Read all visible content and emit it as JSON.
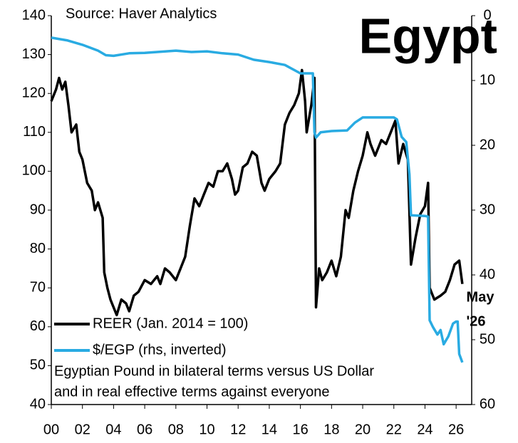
{
  "chart_data": {
    "type": "line",
    "title": "Egypt",
    "annotations": [
      "Source: Haver Analytics",
      "Egyptian Pound in bilateral terms versus US Dollar",
      "and in real effective terms against everyone",
      "May",
      "'26"
    ],
    "xlim": [
      2000,
      2027
    ],
    "xticks": [
      {
        "value": 2000,
        "label": "00"
      },
      {
        "value": 2002,
        "label": "02"
      },
      {
        "value": 2004,
        "label": "04"
      },
      {
        "value": 2006,
        "label": "06"
      },
      {
        "value": 2008,
        "label": "08"
      },
      {
        "value": 2010,
        "label": "10"
      },
      {
        "value": 2012,
        "label": "12"
      },
      {
        "value": 2014,
        "label": "14"
      },
      {
        "value": 2016,
        "label": "16"
      },
      {
        "value": 2018,
        "label": "18"
      },
      {
        "value": 2020,
        "label": "20"
      },
      {
        "value": 2022,
        "label": "22"
      },
      {
        "value": 2024,
        "label": "24"
      },
      {
        "value": 2026,
        "label": "26"
      }
    ],
    "ylim": [
      40,
      140
    ],
    "yticks": [
      40,
      50,
      60,
      70,
      80,
      90,
      100,
      110,
      120,
      130,
      140
    ],
    "y2lim": [
      60,
      0
    ],
    "y2ticks": [
      0,
      10,
      20,
      30,
      40,
      50,
      60
    ],
    "y2_inverted": true,
    "legend": "lower left",
    "series": [
      {
        "name": "REER (Jan. 2014 = 100)",
        "color": "#000000",
        "x": [
          2000.0,
          2000.3,
          2000.5,
          2000.7,
          2000.9,
          2001.1,
          2001.3,
          2001.6,
          2001.8,
          2002.0,
          2002.3,
          2002.6,
          2002.8,
          2003.0,
          2003.3,
          2003.4,
          2003.6,
          2003.8,
          2004.0,
          2004.2,
          2004.5,
          2004.8,
          2005.0,
          2005.3,
          2005.6,
          2006.0,
          2006.4,
          2006.8,
          2007.0,
          2007.3,
          2007.6,
          2008.0,
          2008.3,
          2008.6,
          2008.9,
          2009.2,
          2009.5,
          2009.8,
          2010.1,
          2010.4,
          2010.7,
          2011.0,
          2011.3,
          2011.6,
          2011.8,
          2012.0,
          2012.3,
          2012.6,
          2012.9,
          2013.2,
          2013.5,
          2013.7,
          2014.0,
          2014.4,
          2014.7,
          2015.0,
          2015.3,
          2015.6,
          2015.9,
          2016.1,
          2016.3,
          2016.4,
          2016.7,
          2016.9,
          2017.0,
          2017.2,
          2017.4,
          2017.7,
          2018.0,
          2018.3,
          2018.6,
          2018.9,
          2019.1,
          2019.4,
          2019.7,
          2020.0,
          2020.3,
          2020.5,
          2020.8,
          2021.2,
          2021.5,
          2021.8,
          2022.1,
          2022.3,
          2022.6,
          2022.9,
          2023.1,
          2023.4,
          2023.7,
          2024.0,
          2024.2,
          2024.3,
          2024.6,
          2025.0,
          2025.3,
          2025.6,
          2025.9,
          2026.2,
          2026.4
        ],
        "values": [
          118,
          121,
          124,
          121,
          123,
          117,
          110,
          112,
          105,
          103,
          97,
          95,
          90,
          92,
          88,
          74,
          70,
          67,
          65,
          63,
          67,
          66,
          64,
          68,
          69,
          72,
          71,
          73,
          71,
          75,
          74,
          72,
          75,
          78,
          86,
          93,
          91,
          94,
          97,
          96,
          100,
          100,
          102,
          98,
          94,
          95,
          101,
          102,
          105,
          104,
          97,
          95,
          98,
          100,
          102,
          112,
          115,
          117,
          120,
          126,
          118,
          110,
          117,
          124,
          65,
          75,
          72,
          74,
          77,
          73,
          78,
          90,
          88,
          95,
          100,
          104,
          110,
          107,
          104,
          108,
          107,
          110,
          113,
          102,
          107,
          103,
          76,
          83,
          89,
          91,
          97,
          70,
          67,
          68,
          69,
          72,
          76,
          77,
          71
        ]
      },
      {
        "name": "$/EGP (rhs, inverted)",
        "color": "#29abe2",
        "axis": "y2",
        "x": [
          2000.0,
          2001.0,
          2002.0,
          2003.0,
          2003.5,
          2004.0,
          2005.0,
          2006.0,
          2008.0,
          2009.0,
          2010.0,
          2011.0,
          2012.0,
          2013.0,
          2014.0,
          2015.0,
          2016.0,
          2016.8,
          2016.9,
          2017.0,
          2017.3,
          2018.0,
          2019.0,
          2019.5,
          2020.0,
          2021.0,
          2022.0,
          2022.2,
          2022.5,
          2022.8,
          2023.0,
          2023.1,
          2024.0,
          2024.2,
          2024.3,
          2024.5,
          2024.8,
          2025.0,
          2025.2,
          2025.5,
          2025.8,
          2026.0,
          2026.1,
          2026.2,
          2026.4
        ],
        "values": [
          3.4,
          3.8,
          4.5,
          5.4,
          6.1,
          6.2,
          5.8,
          5.75,
          5.4,
          5.6,
          5.5,
          5.8,
          6.0,
          6.8,
          7.15,
          7.6,
          8.9,
          8.9,
          18.0,
          18.8,
          18.0,
          17.8,
          17.7,
          16.5,
          15.7,
          15.7,
          15.7,
          16.0,
          18.7,
          19.5,
          24.5,
          30.8,
          30.9,
          31.0,
          47.0,
          48.0,
          49.2,
          48.5,
          50.7,
          49.5,
          47.5,
          47.2,
          47.2,
          52.2,
          53.5
        ]
      }
    ]
  }
}
